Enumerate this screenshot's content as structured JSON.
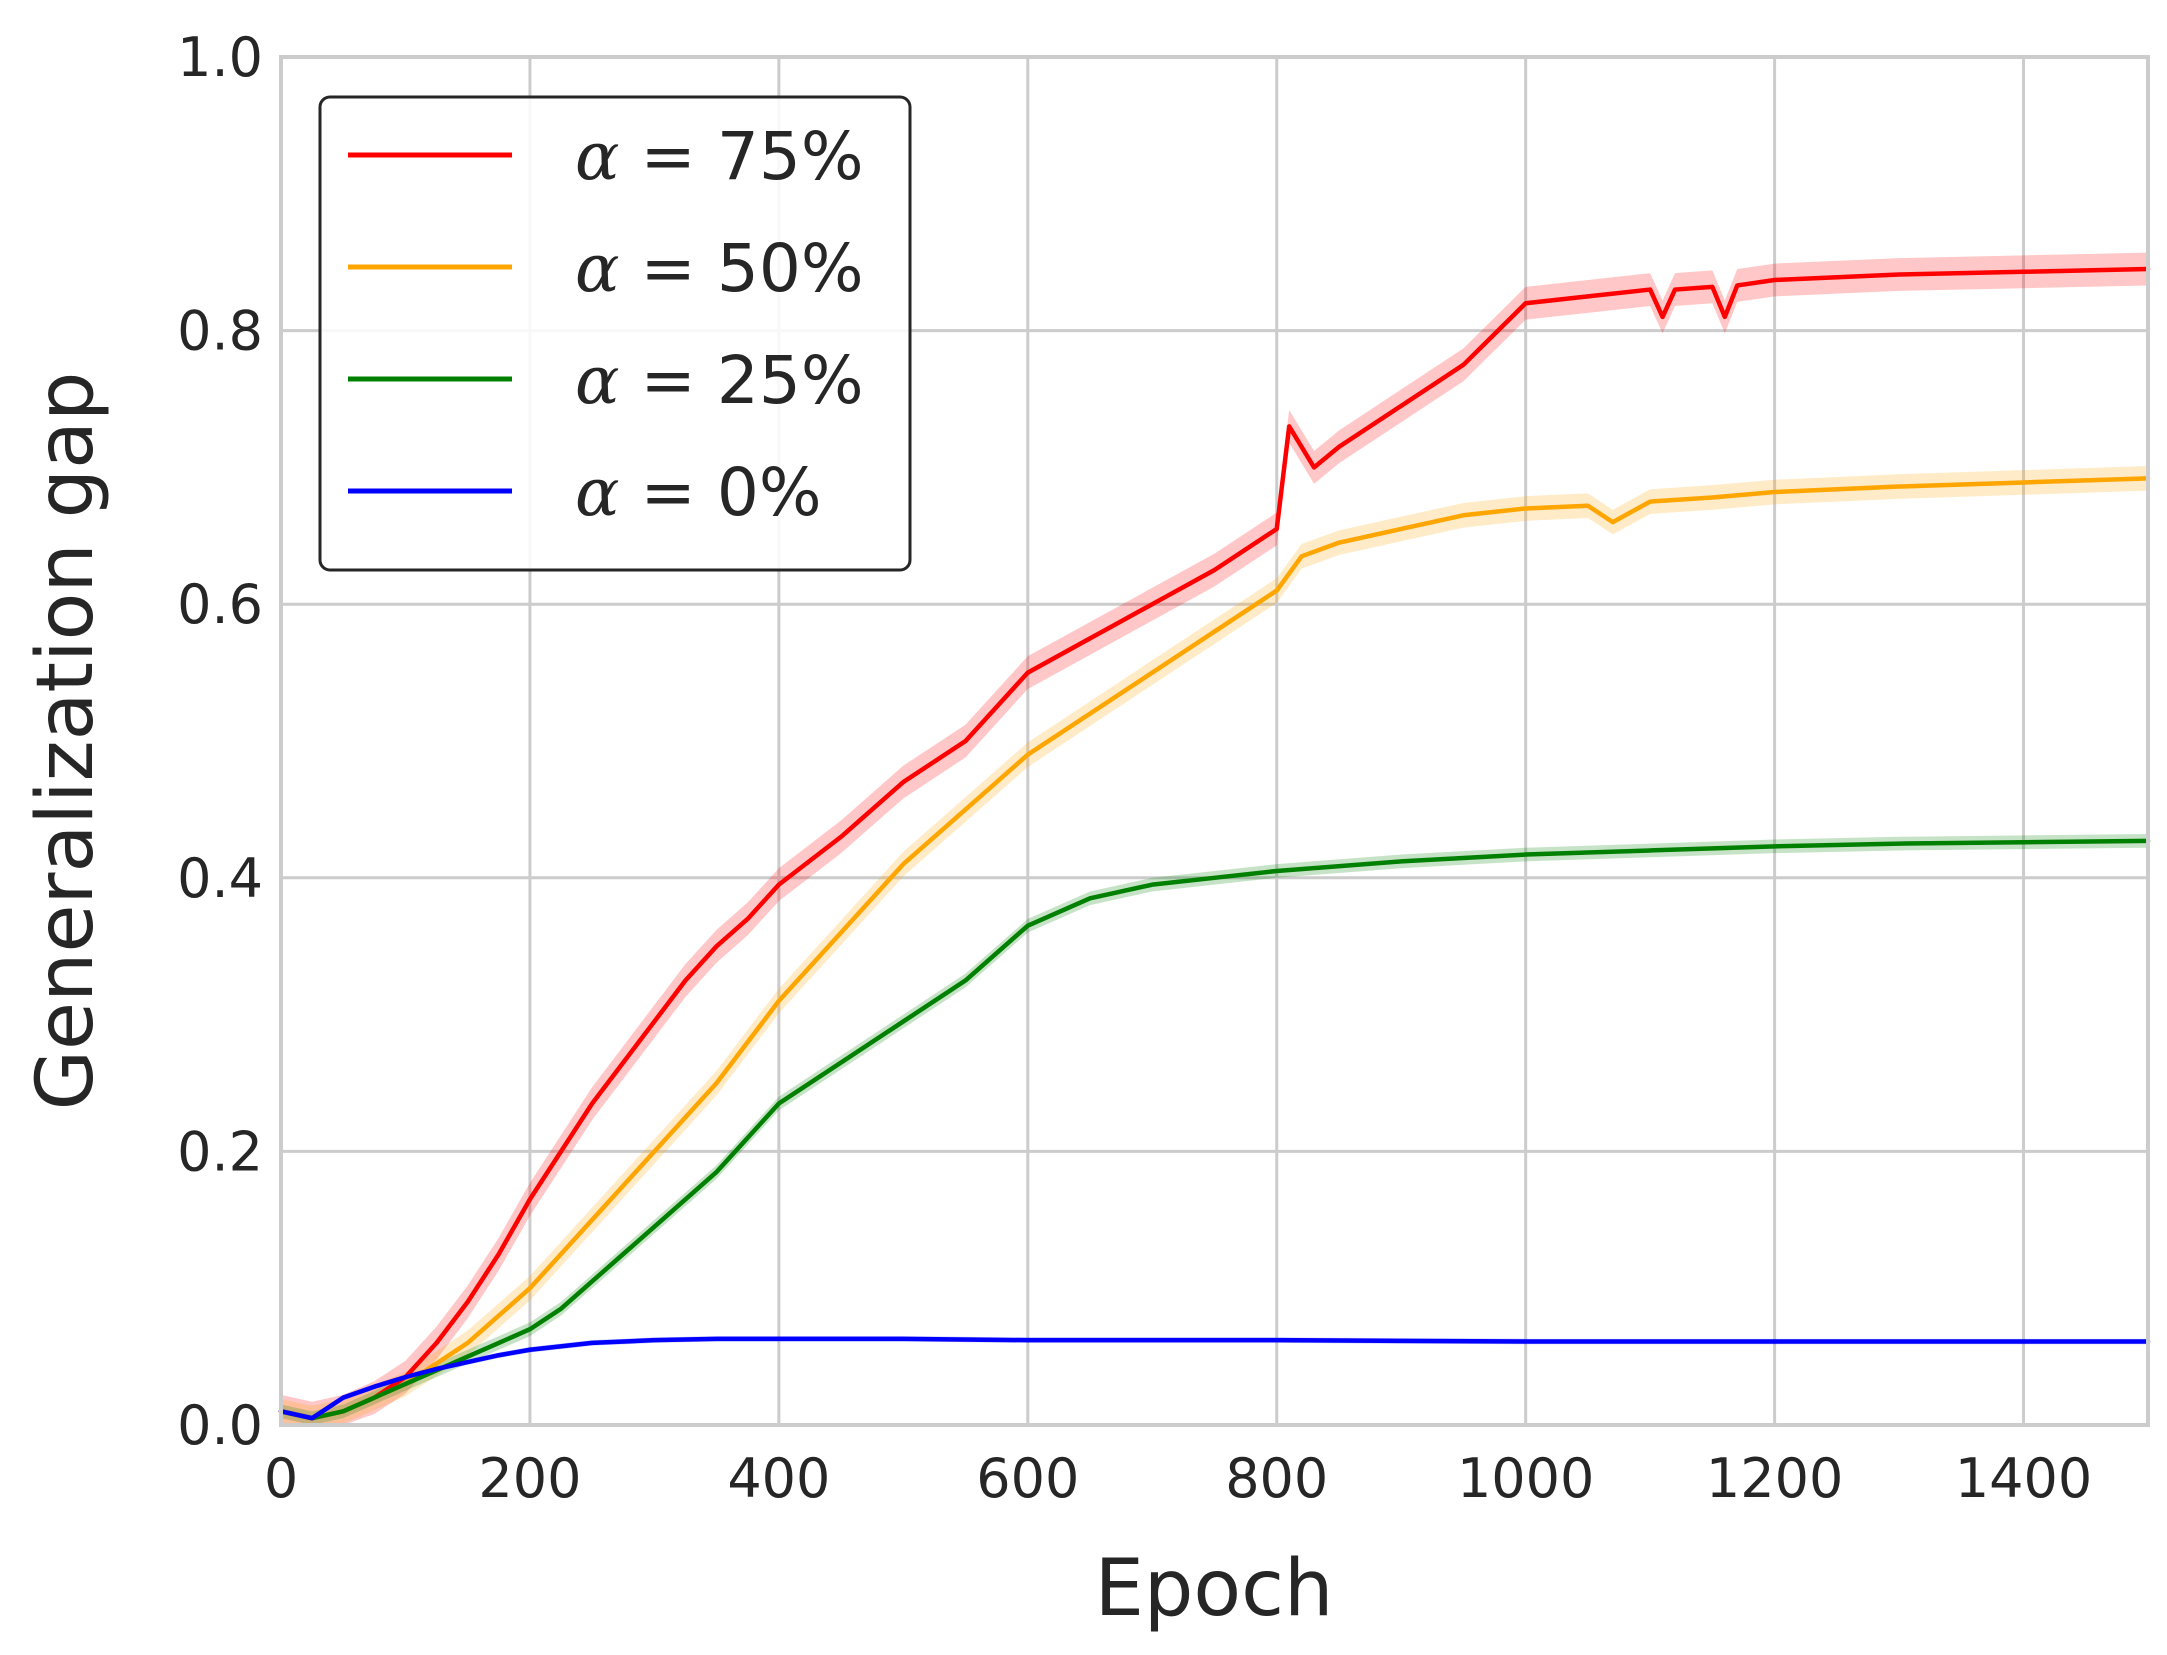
{
  "chart_data": {
    "type": "line",
    "title": "",
    "xlabel": "Epoch",
    "ylabel": "Generalization gap",
    "xlim": [
      0,
      1500
    ],
    "ylim": [
      0,
      1.0
    ],
    "xticks": [
      0,
      200,
      400,
      600,
      800,
      1000,
      1200,
      1400
    ],
    "xtick_labels": [
      "0",
      "200",
      "400",
      "600",
      "800",
      "1000",
      "1200",
      "1400"
    ],
    "yticks": [
      0,
      0.2,
      0.4,
      0.6,
      0.8,
      1.0
    ],
    "ytick_labels": [
      "0.0",
      "0.2",
      "0.4",
      "0.6",
      "0.8",
      "1.0"
    ],
    "grid": true,
    "legend_position": "top-left",
    "series": [
      {
        "name": "α = 75%",
        "alpha_value": "75%",
        "color": "#ff0000",
        "x": [
          0,
          25,
          50,
          75,
          100,
          125,
          150,
          175,
          200,
          225,
          250,
          275,
          300,
          325,
          350,
          375,
          400,
          450,
          500,
          550,
          600,
          650,
          700,
          750,
          800,
          810,
          830,
          850,
          900,
          950,
          1000,
          1050,
          1100,
          1110,
          1120,
          1150,
          1160,
          1170,
          1200,
          1300,
          1400,
          1500
        ],
        "y": [
          0.01,
          0.005,
          0.01,
          0.02,
          0.035,
          0.06,
          0.09,
          0.125,
          0.165,
          0.2,
          0.235,
          0.265,
          0.295,
          0.325,
          0.35,
          0.37,
          0.395,
          0.43,
          0.47,
          0.5,
          0.55,
          0.575,
          0.6,
          0.625,
          0.655,
          0.73,
          0.7,
          0.715,
          0.745,
          0.775,
          0.82,
          0.825,
          0.83,
          0.81,
          0.83,
          0.832,
          0.81,
          0.833,
          0.837,
          0.841,
          0.843,
          0.845
        ]
      },
      {
        "name": "α = 50%",
        "alpha_value": "50%",
        "color": "#ffa500",
        "x": [
          0,
          25,
          50,
          75,
          100,
          125,
          150,
          175,
          200,
          225,
          250,
          275,
          300,
          350,
          400,
          450,
          500,
          550,
          600,
          650,
          700,
          750,
          800,
          820,
          850,
          900,
          950,
          1000,
          1050,
          1070,
          1100,
          1150,
          1200,
          1300,
          1400,
          1500
        ],
        "y": [
          0.01,
          0.005,
          0.01,
          0.02,
          0.03,
          0.045,
          0.06,
          0.08,
          0.1,
          0.125,
          0.15,
          0.175,
          0.2,
          0.25,
          0.31,
          0.36,
          0.41,
          0.45,
          0.49,
          0.52,
          0.55,
          0.58,
          0.61,
          0.635,
          0.645,
          0.655,
          0.665,
          0.67,
          0.672,
          0.66,
          0.675,
          0.678,
          0.682,
          0.686,
          0.689,
          0.692
        ]
      },
      {
        "name": "α = 25%",
        "alpha_value": "25%",
        "color": "#008000",
        "x": [
          0,
          25,
          50,
          75,
          100,
          125,
          150,
          175,
          200,
          225,
          250,
          275,
          300,
          350,
          400,
          450,
          500,
          550,
          600,
          650,
          700,
          750,
          800,
          900,
          1000,
          1100,
          1200,
          1300,
          1400,
          1500
        ],
        "y": [
          0.01,
          0.005,
          0.01,
          0.02,
          0.03,
          0.04,
          0.05,
          0.06,
          0.07,
          0.085,
          0.105,
          0.125,
          0.145,
          0.185,
          0.235,
          0.265,
          0.295,
          0.325,
          0.365,
          0.385,
          0.395,
          0.4,
          0.405,
          0.412,
          0.417,
          0.42,
          0.423,
          0.425,
          0.426,
          0.427
        ]
      },
      {
        "name": "α = 0%",
        "alpha_value": "0%",
        "color": "#0000ff",
        "x": [
          0,
          25,
          50,
          75,
          100,
          125,
          150,
          175,
          200,
          250,
          300,
          350,
          400,
          500,
          600,
          800,
          1000,
          1200,
          1400,
          1500
        ],
        "y": [
          0.01,
          0.005,
          0.02,
          0.028,
          0.035,
          0.041,
          0.046,
          0.051,
          0.055,
          0.06,
          0.062,
          0.063,
          0.063,
          0.063,
          0.062,
          0.062,
          0.061,
          0.061,
          0.061,
          0.061
        ]
      }
    ]
  }
}
